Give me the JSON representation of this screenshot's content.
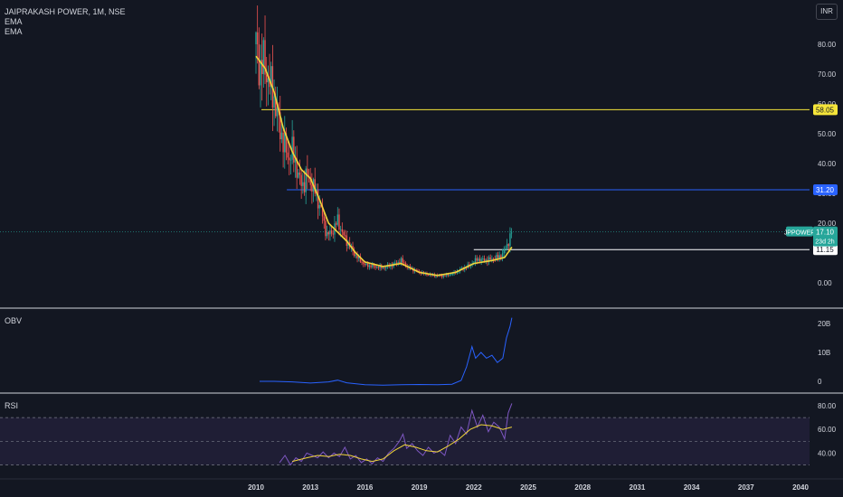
{
  "header": {
    "symbol_title": "JAIPRAKASH POWER, 1M, NSE",
    "indicators": [
      "EMA",
      "EMA"
    ],
    "currency_button": "INR"
  },
  "colors": {
    "background": "#131722",
    "bull": "#26a69a",
    "bear": "#ef5350",
    "ema": "#f0d43a",
    "obv": "#2962ff",
    "rsi": "#7e57c2",
    "rsi_ma": "#f0d43a",
    "level_yellow": "#f5e53a",
    "level_blue": "#2962ff",
    "level_white": "#ffffff"
  },
  "chart_data": [
    {
      "type": "candlestick",
      "title": "JAIPRAKASH POWER, 1M, NSE",
      "y_ticks": [
        "80.00",
        "70.00",
        "60.00",
        "50.00",
        "40.00",
        "30.00",
        "20.00",
        "0.00"
      ],
      "x_ticks": [
        "2010",
        "2013",
        "2016",
        "2019",
        "2022",
        "2025",
        "2028",
        "2031",
        "2034",
        "2037",
        "2040"
      ],
      "ylim": [
        0,
        88
      ],
      "price_points": [
        [
          2010.0,
          80
        ],
        [
          2010.2,
          72
        ],
        [
          2010.4,
          74
        ],
        [
          2010.6,
          70
        ],
        [
          2010.8,
          66
        ],
        [
          2011.0,
          62
        ],
        [
          2011.2,
          55
        ],
        [
          2011.4,
          50
        ],
        [
          2011.6,
          45
        ],
        [
          2011.8,
          42
        ],
        [
          2012.0,
          44
        ],
        [
          2012.2,
          40
        ],
        [
          2012.4,
          34
        ],
        [
          2012.6,
          33
        ],
        [
          2012.8,
          36
        ],
        [
          2013.0,
          34
        ],
        [
          2013.3,
          30
        ],
        [
          2013.6,
          24
        ],
        [
          2013.9,
          16
        ],
        [
          2014.2,
          17
        ],
        [
          2014.5,
          21
        ],
        [
          2014.8,
          16
        ],
        [
          2015.1,
          13
        ],
        [
          2015.5,
          9
        ],
        [
          2016.0,
          6
        ],
        [
          2016.5,
          5.5
        ],
        [
          2017.0,
          5
        ],
        [
          2017.5,
          6
        ],
        [
          2018.0,
          7.5
        ],
        [
          2018.3,
          5.5
        ],
        [
          2018.8,
          4
        ],
        [
          2019.3,
          3
        ],
        [
          2019.8,
          2.5
        ],
        [
          2020.3,
          2.3
        ],
        [
          2020.8,
          3
        ],
        [
          2021.3,
          4.5
        ],
        [
          2021.8,
          6
        ],
        [
          2022.2,
          8
        ],
        [
          2022.6,
          7.5
        ],
        [
          2023.0,
          8
        ],
        [
          2023.5,
          9
        ],
        [
          2023.8,
          12
        ],
        [
          2024.0,
          15.5
        ],
        [
          2024.1,
          17.1
        ]
      ],
      "ema_points": [
        [
          2010.0,
          76
        ],
        [
          2010.5,
          72
        ],
        [
          2011.0,
          64
        ],
        [
          2011.5,
          52
        ],
        [
          2012.0,
          44
        ],
        [
          2012.5,
          38
        ],
        [
          2013.0,
          35
        ],
        [
          2013.5,
          28
        ],
        [
          2014.0,
          20
        ],
        [
          2014.5,
          17
        ],
        [
          2015.0,
          14
        ],
        [
          2015.5,
          10
        ],
        [
          2016.0,
          7
        ],
        [
          2017.0,
          5.5
        ],
        [
          2018.0,
          6.5
        ],
        [
          2018.5,
          5
        ],
        [
          2019.0,
          3.5
        ],
        [
          2020.0,
          2.5
        ],
        [
          2021.0,
          3.5
        ],
        [
          2022.0,
          6.5
        ],
        [
          2023.0,
          7.5
        ],
        [
          2023.7,
          8.5
        ],
        [
          2024.1,
          12
        ]
      ],
      "levels": [
        {
          "value": 58.05,
          "label": "58.05",
          "color": "#f5e53a",
          "from_year": 2010.3
        },
        {
          "value": 31.2,
          "label": "31.20",
          "color": "#2962ff",
          "from_year": 2011.7
        },
        {
          "value": 11.15,
          "label": "11.15",
          "color": "#ffffff",
          "from_year": 2022.0
        }
      ],
      "last_price": {
        "symbol": "JPPOWER",
        "value": 17.1,
        "label": "17.10",
        "countdown": "23d 2h"
      }
    },
    {
      "type": "line",
      "title": "OBV",
      "y_ticks": [
        "20B",
        "10B",
        "0"
      ],
      "ylim": [
        -2,
        24
      ],
      "points": [
        [
          2010.2,
          0
        ],
        [
          2011.0,
          0
        ],
        [
          2012.0,
          -0.2
        ],
        [
          2013.0,
          -0.6
        ],
        [
          2014.0,
          -0.2
        ],
        [
          2014.5,
          0.4
        ],
        [
          2015.0,
          -0.5
        ],
        [
          2016.0,
          -1.2
        ],
        [
          2017.0,
          -1.3
        ],
        [
          2018.0,
          -1.2
        ],
        [
          2019.0,
          -1.1
        ],
        [
          2020.0,
          -1.2
        ],
        [
          2020.8,
          -1.0
        ],
        [
          2021.3,
          0.3
        ],
        [
          2021.6,
          5
        ],
        [
          2021.9,
          12
        ],
        [
          2022.1,
          8
        ],
        [
          2022.4,
          10
        ],
        [
          2022.7,
          8
        ],
        [
          2023.0,
          9
        ],
        [
          2023.3,
          6.5
        ],
        [
          2023.6,
          8
        ],
        [
          2023.8,
          15
        ],
        [
          2024.0,
          19
        ],
        [
          2024.1,
          22
        ]
      ]
    },
    {
      "type": "line",
      "title": "RSI",
      "y_ticks": [
        "80.00",
        "60.00",
        "40.00"
      ],
      "ylim": [
        28,
        84
      ],
      "bands": [
        70,
        50,
        30
      ],
      "rsi_points": [
        [
          2011.3,
          32
        ],
        [
          2011.6,
          38
        ],
        [
          2011.9,
          30
        ],
        [
          2012.2,
          36
        ],
        [
          2012.5,
          33
        ],
        [
          2012.8,
          40
        ],
        [
          2013.1,
          38
        ],
        [
          2013.4,
          36
        ],
        [
          2013.7,
          41
        ],
        [
          2014.0,
          36
        ],
        [
          2014.3,
          40
        ],
        [
          2014.6,
          37
        ],
        [
          2014.9,
          45
        ],
        [
          2015.2,
          35
        ],
        [
          2015.5,
          38
        ],
        [
          2015.8,
          32
        ],
        [
          2016.1,
          35
        ],
        [
          2016.4,
          31
        ],
        [
          2016.7,
          36
        ],
        [
          2017.0,
          33
        ],
        [
          2017.3,
          40
        ],
        [
          2017.6,
          44
        ],
        [
          2017.9,
          50
        ],
        [
          2018.1,
          56
        ],
        [
          2018.3,
          44
        ],
        [
          2018.6,
          48
        ],
        [
          2018.9,
          42
        ],
        [
          2019.2,
          38
        ],
        [
          2019.5,
          45
        ],
        [
          2019.8,
          40
        ],
        [
          2020.1,
          42
        ],
        [
          2020.4,
          38
        ],
        [
          2020.7,
          55
        ],
        [
          2021.0,
          48
        ],
        [
          2021.3,
          62
        ],
        [
          2021.6,
          56
        ],
        [
          2021.9,
          76
        ],
        [
          2022.2,
          62
        ],
        [
          2022.5,
          72
        ],
        [
          2022.8,
          58
        ],
        [
          2023.1,
          66
        ],
        [
          2023.4,
          62
        ],
        [
          2023.7,
          52
        ],
        [
          2023.9,
          74
        ],
        [
          2024.1,
          82
        ]
      ],
      "ma_points": [
        [
          2012.0,
          33
        ],
        [
          2012.8,
          36
        ],
        [
          2013.4,
          38
        ],
        [
          2014.0,
          37
        ],
        [
          2014.6,
          39
        ],
        [
          2015.2,
          38
        ],
        [
          2015.8,
          35
        ],
        [
          2016.4,
          33
        ],
        [
          2017.0,
          35
        ],
        [
          2017.6,
          42
        ],
        [
          2018.2,
          47
        ],
        [
          2018.8,
          45
        ],
        [
          2019.4,
          42
        ],
        [
          2020.0,
          41
        ],
        [
          2020.6,
          46
        ],
        [
          2021.2,
          52
        ],
        [
          2021.8,
          60
        ],
        [
          2022.4,
          64
        ],
        [
          2023.0,
          63
        ],
        [
          2023.6,
          60
        ],
        [
          2024.1,
          62
        ]
      ]
    }
  ]
}
